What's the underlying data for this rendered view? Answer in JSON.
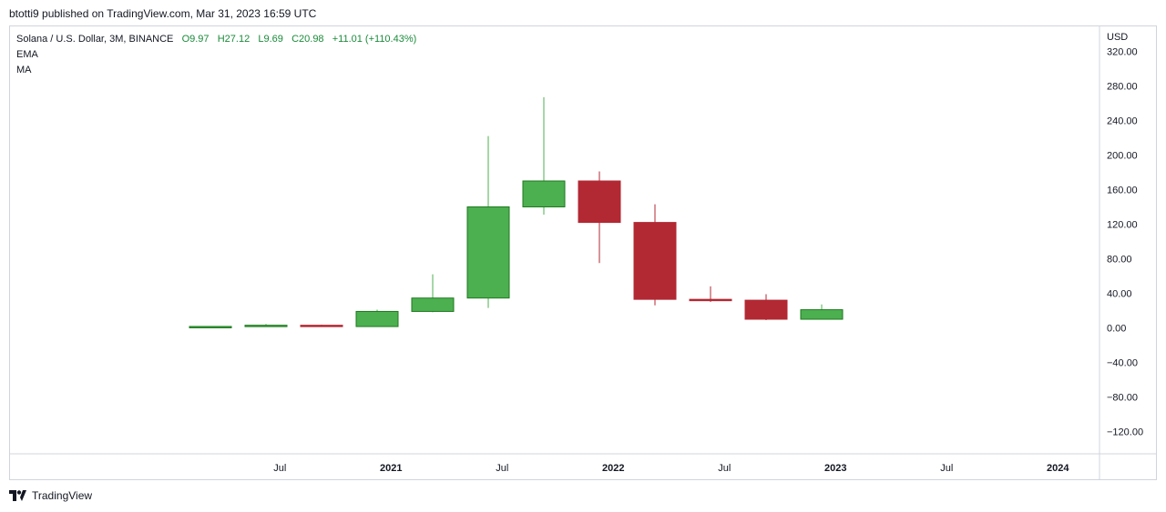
{
  "header": {
    "publisher_line": "btotti9 published on TradingView.com, Mar 31, 2023 16:59 UTC"
  },
  "legend": {
    "symbol": "Solana / U.S. Dollar, 3M, BINANCE",
    "open": "O9.97",
    "high": "H27.12",
    "low": "L9.69",
    "close": "C20.98",
    "change": "+11.01 (+110.43%)",
    "indicators": [
      "EMA",
      "MA"
    ]
  },
  "footer": {
    "brand": "TradingView"
  },
  "colors": {
    "up": "#4caf50",
    "up_border": "#1e7a1e",
    "down": "#b22833",
    "grid": "#d1d4dc",
    "text": "#131722"
  },
  "chart_data": {
    "type": "candlestick",
    "currency": "USD",
    "ylim": [
      -140,
      330
    ],
    "y_ticks": [
      320,
      280,
      240,
      200,
      160,
      120,
      80,
      40,
      0,
      -40,
      -80,
      -120
    ],
    "y_tick_labels": [
      "320.00",
      "280.00",
      "240.00",
      "200.00",
      "160.00",
      "120.00",
      "80.00",
      "40.00",
      "0.00",
      "−40.00",
      "−80.00",
      "−120.00"
    ],
    "x_ticks": [
      {
        "label": "Jul",
        "index": 1.25,
        "bold": false
      },
      {
        "label": "2021",
        "index": 3.25,
        "bold": true
      },
      {
        "label": "Jul",
        "index": 5.25,
        "bold": false
      },
      {
        "label": "2022",
        "index": 7.25,
        "bold": true
      },
      {
        "label": "Jul",
        "index": 9.25,
        "bold": false
      },
      {
        "label": "2023",
        "index": 11.25,
        "bold": true
      },
      {
        "label": "Jul",
        "index": 13.25,
        "bold": false
      },
      {
        "label": "2024",
        "index": 15.25,
        "bold": true
      }
    ],
    "candles": [
      {
        "open": 1.0,
        "high": 2.0,
        "low": 0.5,
        "close": 1.6
      },
      {
        "open": 1.6,
        "high": 4.5,
        "low": 1.0,
        "close": 3.0
      },
      {
        "open": 3.0,
        "high": 3.5,
        "low": 1.5,
        "close": 1.5
      },
      {
        "open": 1.5,
        "high": 21.0,
        "low": 1.0,
        "close": 19.0
      },
      {
        "open": 19.0,
        "high": 62.0,
        "low": 18.0,
        "close": 34.5
      },
      {
        "open": 34.5,
        "high": 222.0,
        "low": 23.0,
        "close": 140.0
      },
      {
        "open": 140.0,
        "high": 267.0,
        "low": 131.0,
        "close": 170.0
      },
      {
        "open": 170.0,
        "high": 181.0,
        "low": 75.0,
        "close": 122.0
      },
      {
        "open": 122.0,
        "high": 143.0,
        "low": 26.0,
        "close": 33.0
      },
      {
        "open": 33.0,
        "high": 48.0,
        "low": 30.0,
        "close": 32.0
      },
      {
        "open": 32.0,
        "high": 39.0,
        "low": 9.0,
        "close": 9.97
      },
      {
        "open": 9.97,
        "high": 27.12,
        "low": 9.69,
        "close": 20.98
      }
    ]
  }
}
